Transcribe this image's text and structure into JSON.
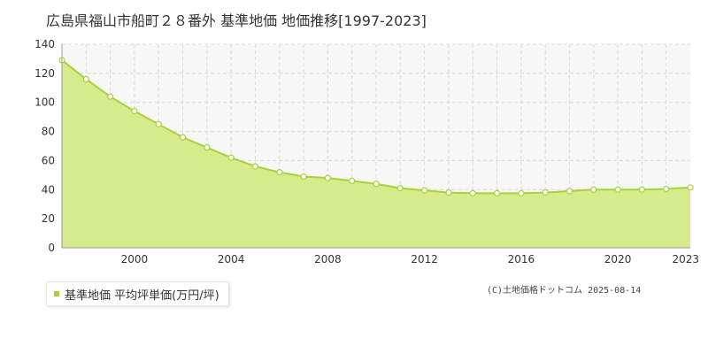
{
  "header": {
    "title": "広島県福山市船町２８番外 基準地価 地価推移[1997-2023]"
  },
  "legend": {
    "label": "基準地価 平均坪単価(万円/坪)"
  },
  "footer": {
    "copyright": "(C)土地価格ドットコム 2025-08-14"
  },
  "colors": {
    "fill": "#d6ec8c",
    "line": "#a8d23a",
    "grid": "#d9d9d9",
    "plot_bg": "#f7f7f7",
    "axis_text": "#333333"
  },
  "chart_data": {
    "type": "area",
    "title": "広島県福山市船町２８番外 基準地価 地価推移[1997-2023]",
    "xlabel": "",
    "ylabel": "",
    "xlim": [
      1997,
      2023
    ],
    "ylim": [
      0,
      140
    ],
    "yticks": [
      0,
      20,
      40,
      60,
      80,
      100,
      120,
      140
    ],
    "xtick_labels": [
      "2000",
      "2004",
      "2008",
      "2012",
      "2016",
      "2020",
      "2023"
    ],
    "grid": true,
    "legend_position": "bottom-left",
    "series": [
      {
        "name": "基準地価 平均坪単価(万円/坪)",
        "x": [
          1997,
          1998,
          1999,
          2000,
          2001,
          2002,
          2003,
          2004,
          2005,
          2006,
          2007,
          2008,
          2009,
          2010,
          2011,
          2012,
          2013,
          2014,
          2015,
          2016,
          2017,
          2018,
          2019,
          2020,
          2021,
          2022,
          2023
        ],
        "values": [
          129,
          116,
          104,
          94,
          85,
          76,
          69,
          62,
          56,
          52,
          49,
          48,
          46,
          44,
          41,
          39.5,
          38,
          37.5,
          37.5,
          37.5,
          38,
          39,
          40,
          40,
          40,
          40.5,
          41.5
        ]
      }
    ]
  }
}
